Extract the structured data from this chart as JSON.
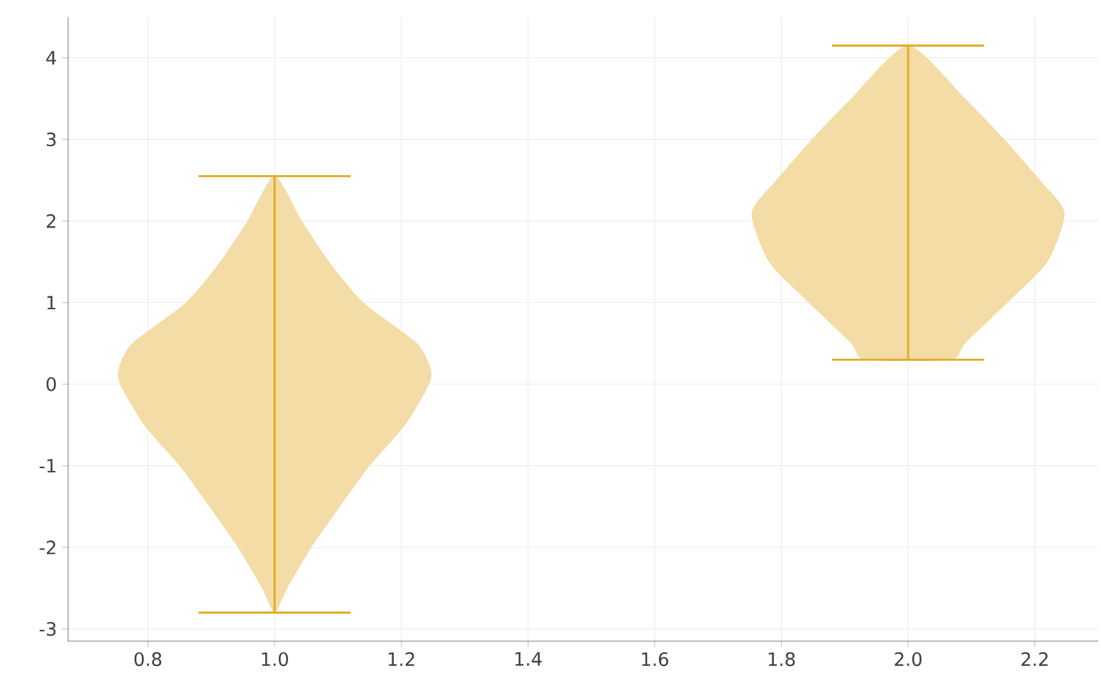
{
  "chart_data": {
    "type": "line",
    "color": "#e0aa1c",
    "series": [
      {
        "type": "area",
        "color": "#f4dca6",
        "x": [
          1.0,
          1.02,
          1.058,
          1.103,
          1.15,
          1.206,
          1.244,
          1.246,
          1.225,
          1.14,
          1.086,
          1.043,
          1.0,
          0.957,
          0.914,
          0.86,
          0.775,
          0.754,
          0.756,
          0.794,
          0.85,
          0.897,
          0.942,
          0.98
        ],
        "values": [
          -2.8,
          -2.5,
          -2,
          -1.5,
          -1,
          -0.5,
          0,
          0.2,
          0.5,
          1,
          1.5,
          2,
          2.55,
          2,
          1.5,
          1,
          0.5,
          0.2,
          0,
          -0.5,
          -1,
          -1.5,
          -2,
          -2.5
        ]
      },
      {
        "type": "area",
        "color": "#f4dca6",
        "x": [
          1.933,
          2.067,
          2.09,
          2.157,
          2.22,
          2.247,
          2.208,
          2.152,
          2.09,
          2.0,
          1.91,
          1.848,
          1.792,
          1.753,
          1.78,
          1.843,
          1.91
        ],
        "values": [
          0.3,
          0.3,
          0.5,
          1,
          1.5,
          2.1,
          2.5,
          3,
          3.5,
          4.15,
          3.5,
          3,
          2.5,
          2.1,
          1.5,
          1,
          0.5
        ]
      },
      {
        "x": [
          1.0,
          1.0
        ],
        "values": [
          -2.8,
          2.55
        ]
      },
      {
        "x": [
          0.88,
          1.12
        ],
        "values": [
          -2.8,
          -2.8
        ]
      },
      {
        "x": [
          0.88,
          1.12
        ],
        "values": [
          2.55,
          2.55
        ]
      },
      {
        "x": [
          2.0,
          2.0
        ],
        "values": [
          0.3,
          4.15
        ]
      },
      {
        "x": [
          1.88,
          2.12
        ],
        "values": [
          0.3,
          0.3
        ]
      },
      {
        "x": [
          1.88,
          2.12
        ],
        "values": [
          4.15,
          4.15
        ]
      }
    ],
    "xlim": [
      0.674,
      2.3
    ],
    "ylim": [
      -3.15,
      4.5
    ],
    "xticks": [
      0.8,
      {
        "value": 1.0,
        "label": "1.0"
      },
      1.2,
      1.4,
      1.6,
      1.8,
      {
        "value": 2.0,
        "label": "2.0"
      },
      2.2
    ],
    "yticks": [
      -3,
      -2,
      -1,
      0,
      1,
      2,
      3,
      4
    ],
    "grid": true
  }
}
